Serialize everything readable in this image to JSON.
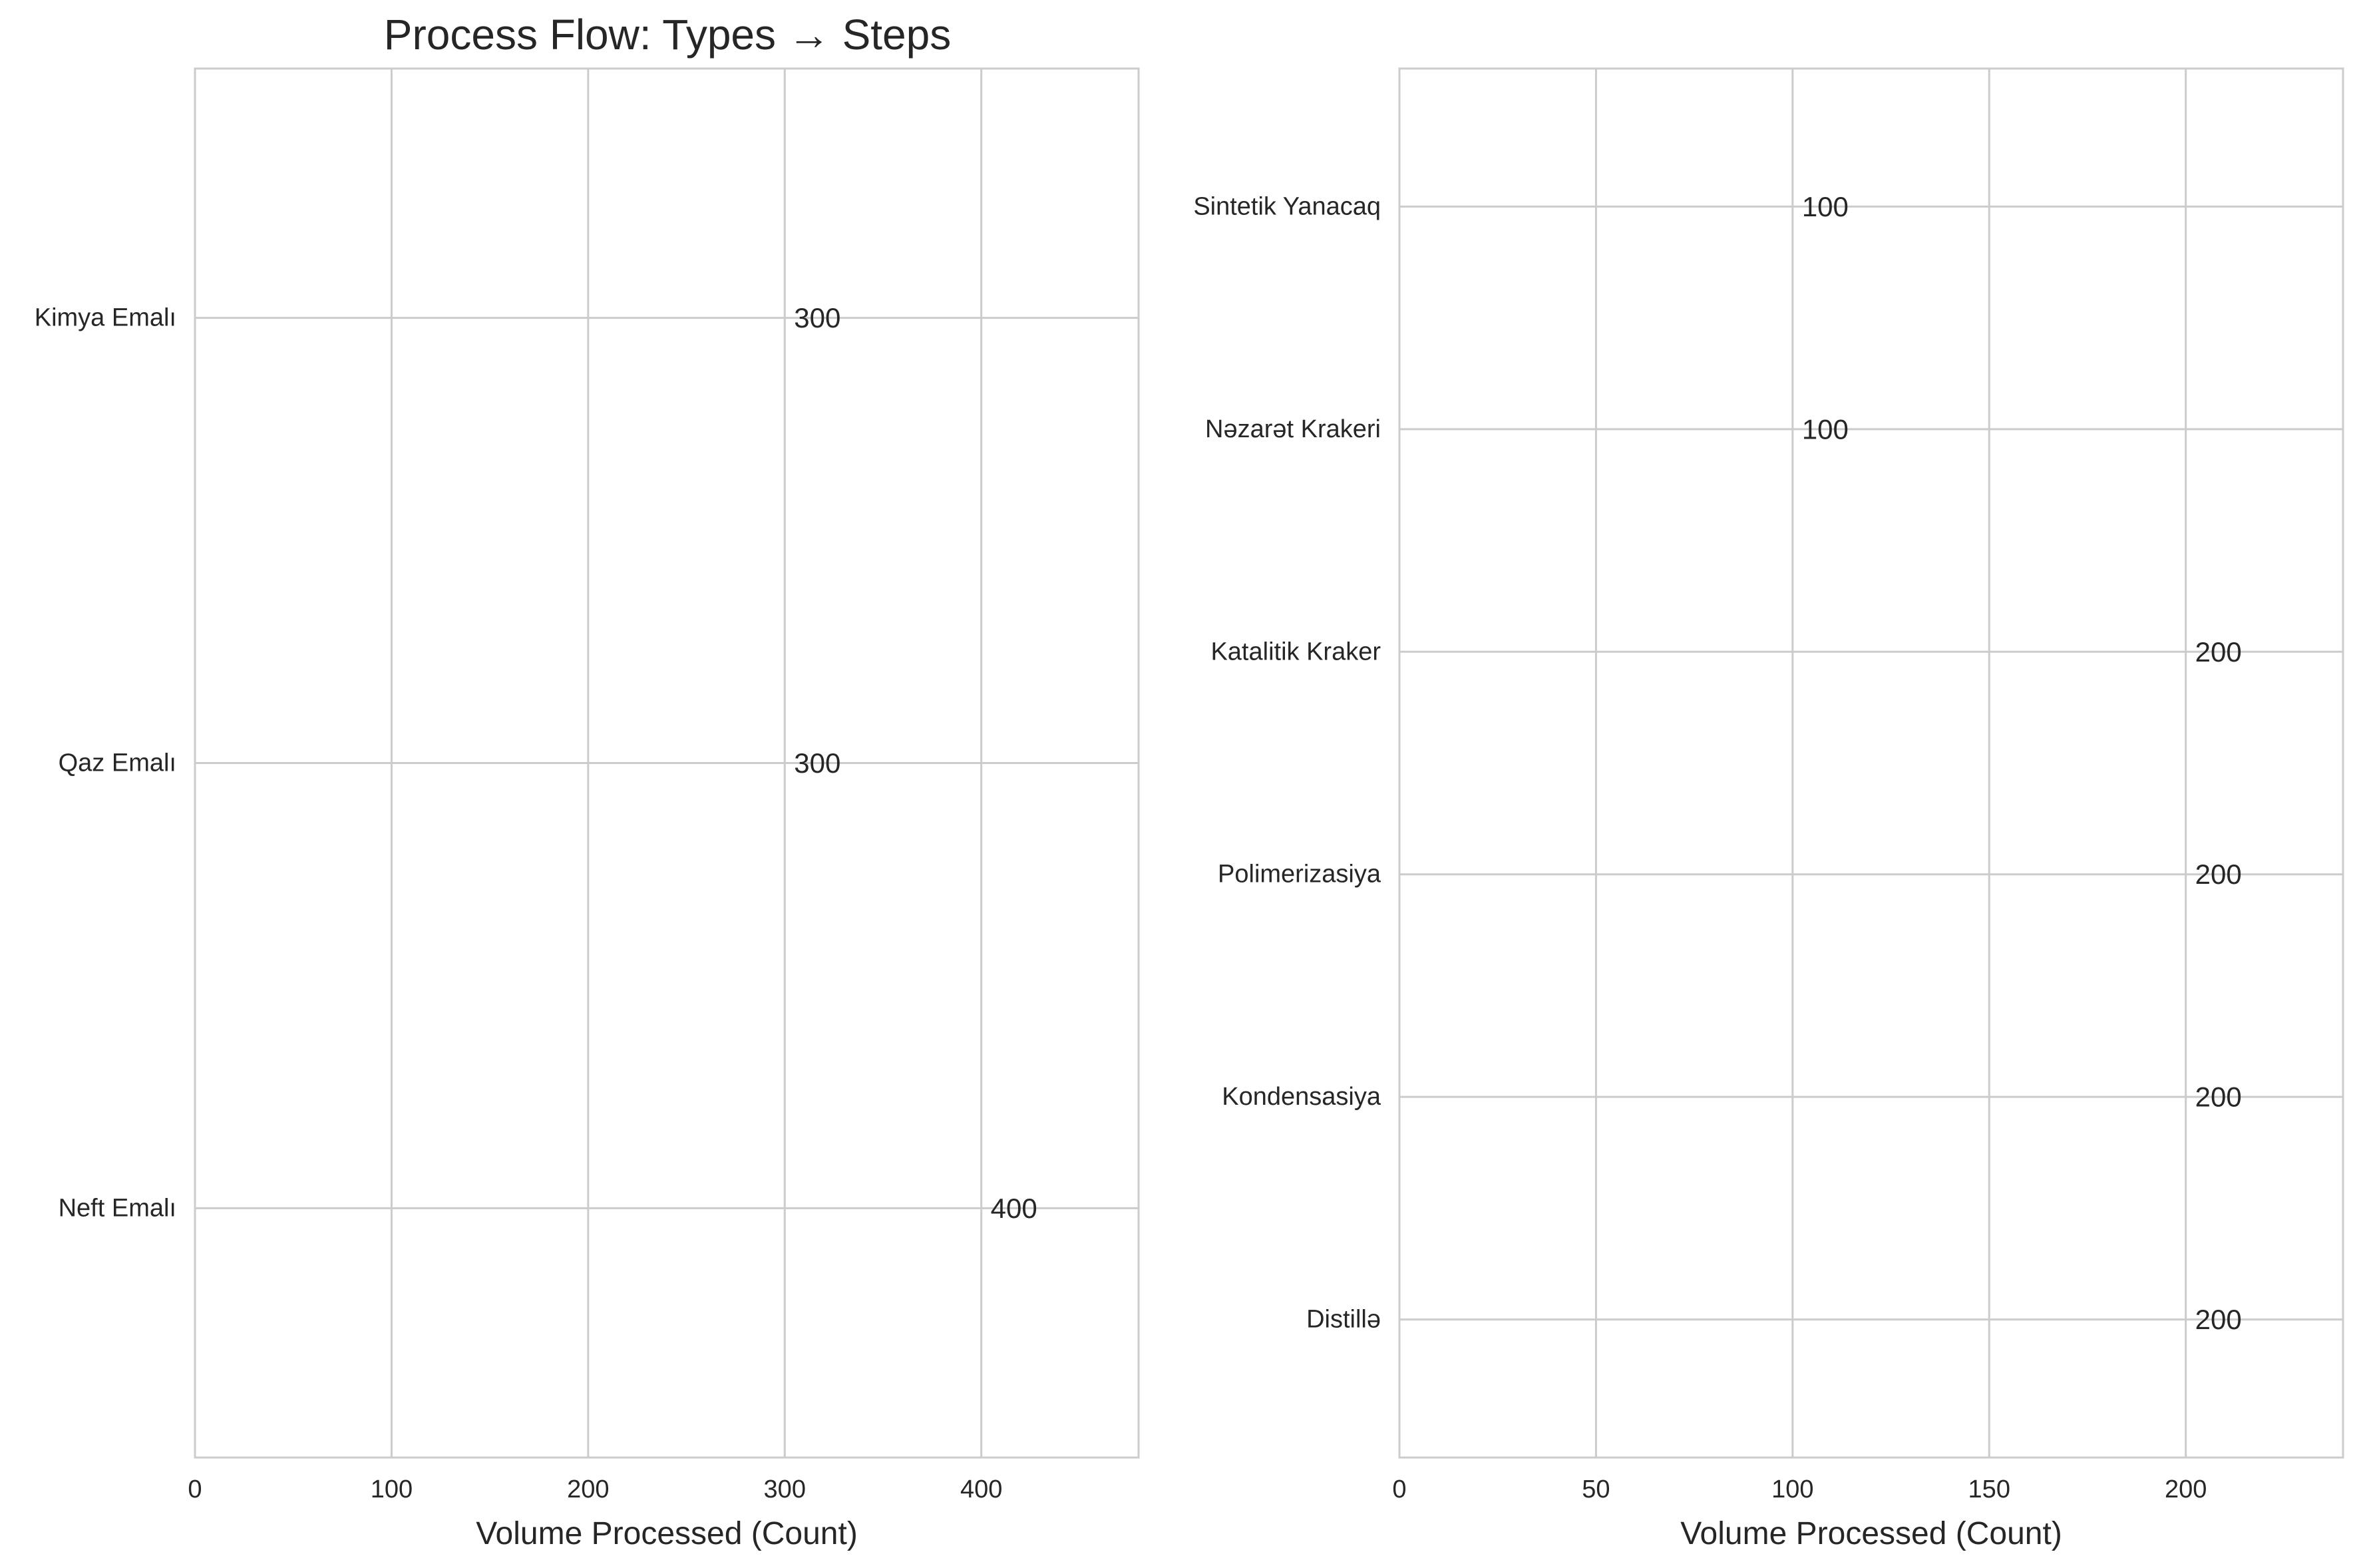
{
  "figure": {
    "title": "Process Flow: Types → Steps"
  },
  "chart_data": [
    {
      "type": "bar",
      "orientation": "horizontal",
      "title": "Process Flow: Types → Steps",
      "xlabel": "Volume Processed (Count)",
      "ylabel": "",
      "xlim": [
        0,
        480
      ],
      "xticks": [
        0,
        100,
        200,
        300,
        400
      ],
      "grid": true,
      "categories": [
        "Neft Emalı",
        "Qaz Emalı",
        "Kimya Emalı"
      ],
      "values": [
        400,
        300,
        300
      ],
      "colors": [
        "#1f77b4",
        "#ff7f0e",
        "#2ca02c"
      ],
      "data_labels": [
        "400",
        "300",
        "300"
      ]
    },
    {
      "type": "bar",
      "orientation": "horizontal",
      "title": "",
      "xlabel": "Volume Processed (Count)",
      "ylabel": "",
      "xlim": [
        0,
        240
      ],
      "xticks": [
        0,
        50,
        100,
        150,
        200
      ],
      "grid": true,
      "categories": [
        "Distillə",
        "Kondensasiya",
        "Polimerizasiya",
        "Katalitik Kraker",
        "Nəzarət Krakeri",
        "Sintetik Yanacaq"
      ],
      "values": [
        200,
        200,
        200,
        200,
        100,
        100
      ],
      "colors": [
        "#1f77b4",
        "#ff7f0e",
        "#2ca02c",
        "#d62728",
        "#9467bd",
        "#8c564b"
      ],
      "data_labels": [
        "200",
        "200",
        "200",
        "200",
        "100",
        "100"
      ]
    }
  ]
}
